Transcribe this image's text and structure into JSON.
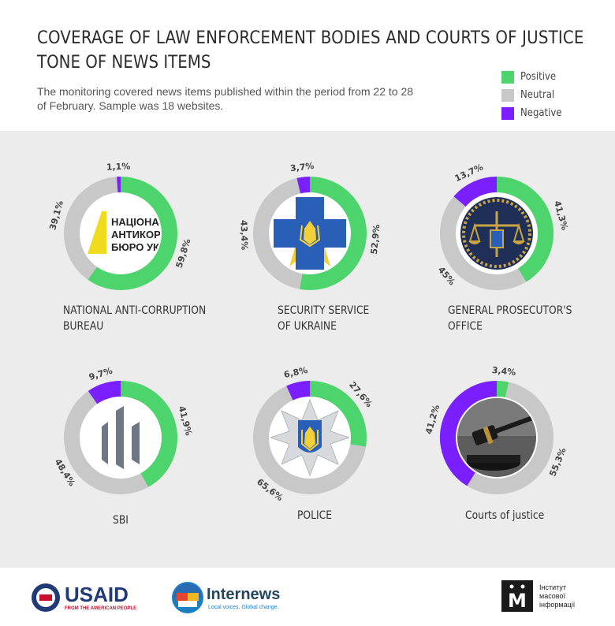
{
  "header": {
    "title": "COVERAGE OF LAW ENFORCEMENT BODIES AND COURTS OF JUSTICE",
    "subtitle": "TONE OF NEWS ITEMS",
    "description": "The monitoring covered news items published within the period from 22 to 28 of February. Sample was 18 websites."
  },
  "legend": [
    {
      "label": "Positive",
      "color": "#4dd46c"
    },
    {
      "label": "Neutral",
      "color": "#c8c8c8"
    },
    {
      "label": "Negative",
      "color": "#7a1fff"
    }
  ],
  "colors": {
    "positive": "#4dd46c",
    "neutral": "#c8c8c8",
    "negative": "#7a1fff"
  },
  "chart_data": [
    {
      "type": "pie",
      "title": "NATIONAL ANTI-CORRUPTION BUREAU",
      "title_lines": [
        "NATIONAL ANTI-CORRUPTION",
        "BUREAU"
      ],
      "positive": 59.8,
      "neutral": 39.1,
      "negative": 1.1,
      "labels": {
        "positive": "59,8%",
        "neutral": "39,1%",
        "negative": "1,1%"
      },
      "emblem": "nabu-logo",
      "emblem_text": [
        "НАЦІОНАЛЬ",
        "АНТИКОРУ",
        "БЮРО УКР"
      ]
    },
    {
      "type": "pie",
      "title": "SECURITY SERVICE OF UKRAINE",
      "title_lines": [
        "SECURITY SERVICE",
        "OF UKRAINE"
      ],
      "positive": 52.9,
      "neutral": 43.4,
      "negative": 3.7,
      "labels": {
        "positive": "52,9%",
        "neutral": "43,4%",
        "negative": "3,7%"
      },
      "emblem": "ssu-emblem"
    },
    {
      "type": "pie",
      "title": "GENERAL PROSECUTOR'S OFFICE",
      "title_lines": [
        "GENERAL PROSECUTOR'S",
        "OFFICE"
      ],
      "positive": 41.3,
      "neutral": 45,
      "negative": 13.7,
      "labels": {
        "positive": "41,3%",
        "neutral": "45%",
        "negative": "13,7%"
      },
      "emblem": "prosecutor-emblem"
    },
    {
      "type": "pie",
      "title": "SBI",
      "title_lines": [
        "SBI"
      ],
      "positive": 41.9,
      "neutral": 48.4,
      "negative": 9.7,
      "labels": {
        "positive": "41,9%",
        "neutral": "48,4%",
        "negative": "9,7%"
      },
      "emblem": "sbi-logo"
    },
    {
      "type": "pie",
      "title": "POLICE",
      "title_lines": [
        "POLICE"
      ],
      "positive": 27.6,
      "neutral": 65.6,
      "negative": 6.8,
      "labels": {
        "positive": "27,6%",
        "neutral": "65,6%",
        "negative": "6,8%"
      },
      "emblem": "police-emblem"
    },
    {
      "type": "pie",
      "title": "Courts of justice",
      "title_lines": [
        "Courts of justice"
      ],
      "positive": 3.4,
      "neutral": 55.3,
      "negative": 41.2,
      "labels": {
        "positive": "3,4%",
        "neutral": "55,3%",
        "negative": "41,2%"
      },
      "emblem": "gavel-photo"
    }
  ],
  "footer": {
    "usaid": {
      "name": "USAID",
      "tagline": "FROM THE AMERICAN PEOPLE"
    },
    "internews": {
      "name": "Internews",
      "tagline": "Local voices. Global change."
    },
    "imi": {
      "mark": "М",
      "lines": [
        "Інститут",
        "масової",
        "інформації"
      ]
    }
  }
}
